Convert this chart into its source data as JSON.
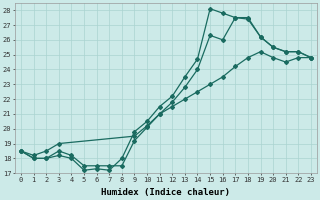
{
  "xlabel": "Humidex (Indice chaleur)",
  "bg_color": "#cceae8",
  "grid_color": "#aad4d0",
  "line_color": "#1a6b60",
  "x_min": 0,
  "x_max": 23,
  "y_min": 17,
  "y_max": 28,
  "line1_x": [
    0,
    1,
    2,
    3,
    4,
    5,
    6,
    7,
    8,
    9,
    10,
    11,
    12,
    13,
    14,
    15,
    16,
    17,
    18,
    19,
    20,
    21,
    22,
    23
  ],
  "line1_y": [
    18.5,
    18.0,
    18.0,
    18.2,
    18.0,
    17.2,
    17.3,
    17.2,
    18.0,
    19.8,
    20.5,
    21.5,
    22.2,
    23.5,
    24.7,
    28.1,
    27.8,
    27.5,
    27.4,
    26.2,
    25.5,
    25.2,
    25.2,
    24.8
  ],
  "line2_x": [
    0,
    1,
    2,
    3,
    4,
    5,
    6,
    7,
    8,
    9,
    10,
    11,
    12,
    13,
    14,
    15,
    16,
    17,
    18,
    19,
    20,
    21,
    22,
    23
  ],
  "line2_y": [
    18.5,
    18.0,
    18.0,
    18.5,
    18.2,
    17.5,
    17.5,
    17.5,
    17.5,
    19.2,
    20.1,
    21.0,
    21.8,
    22.8,
    24.0,
    26.3,
    26.0,
    27.5,
    27.5,
    26.2,
    25.5,
    25.2,
    25.2,
    24.8
  ],
  "line3_x": [
    0,
    1,
    2,
    3,
    9,
    10,
    11,
    12,
    13,
    14,
    15,
    16,
    17,
    18,
    19,
    20,
    21,
    22,
    23
  ],
  "line3_y": [
    18.5,
    18.2,
    18.5,
    19.0,
    19.5,
    20.2,
    21.0,
    21.5,
    22.0,
    22.5,
    23.0,
    23.5,
    24.2,
    24.8,
    25.2,
    24.8,
    24.5,
    24.8,
    24.8
  ]
}
